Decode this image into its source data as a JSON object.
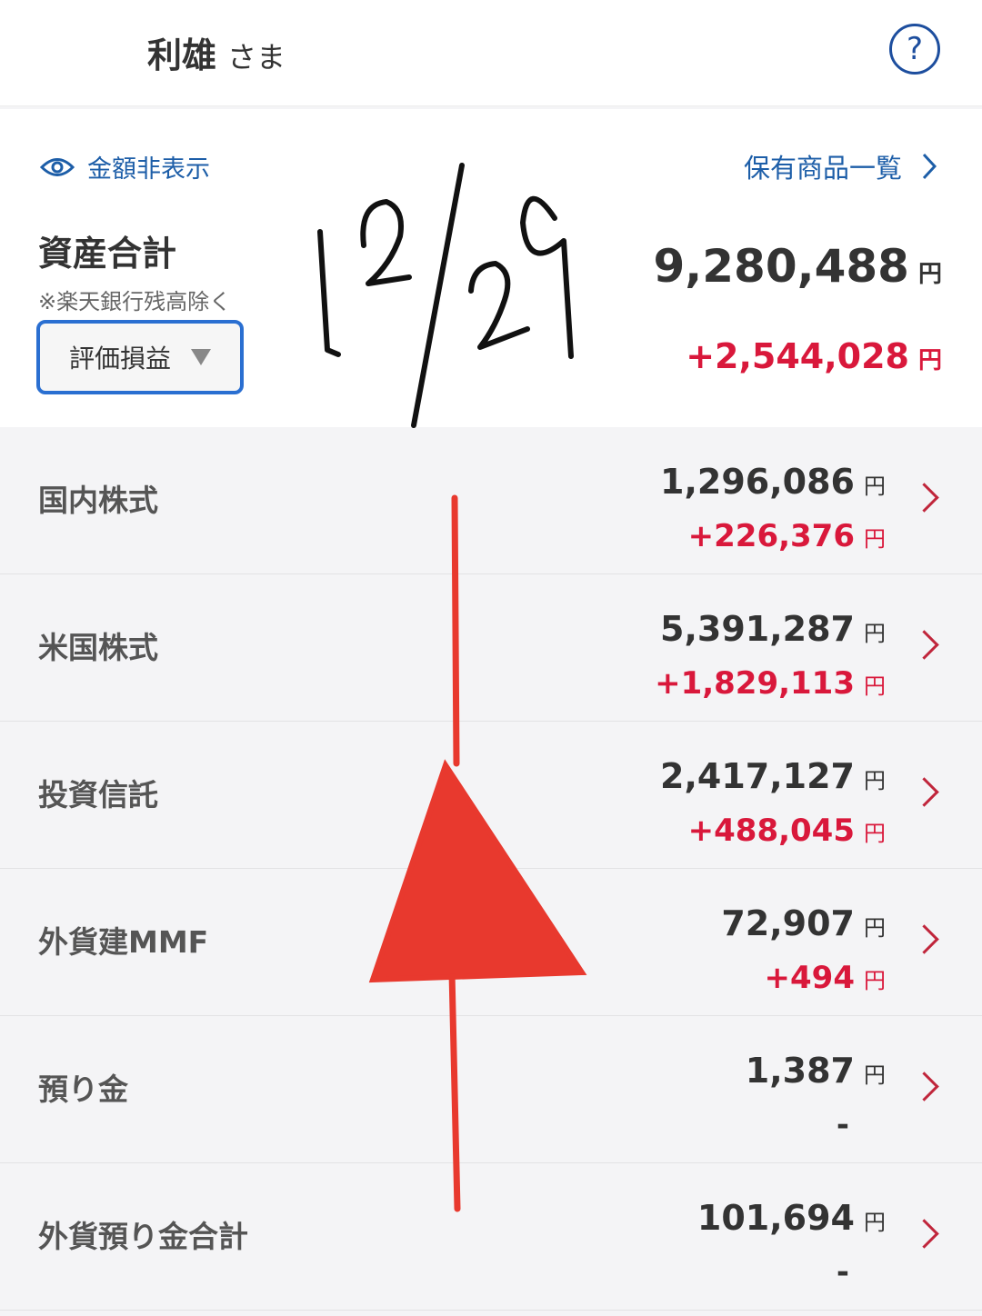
{
  "header": {
    "user_name": "利雄",
    "honorific": "さま",
    "help_icon": "question-circle-icon",
    "help_label": "?"
  },
  "summary": {
    "hide_amount_label": "金額非表示",
    "holdings_link_label": "保有商品一覧",
    "title": "資産合計",
    "note": "※楽天銀行残高除く",
    "select_value": "評価損益",
    "total": "9,280,488",
    "total_unit": "円",
    "gain": "+2,544,028",
    "gain_unit": "円"
  },
  "rows": [
    {
      "label": "国内株式",
      "amount": "1,296,086",
      "gain": "+226,376",
      "unit": "円"
    },
    {
      "label": "米国株式",
      "amount": "5,391,287",
      "gain": "+1,829,113",
      "unit": "円"
    },
    {
      "label": "投資信託",
      "amount": "2,417,127",
      "gain": "+488,045",
      "unit": "円"
    },
    {
      "label": "外貨建MMF",
      "amount": "72,907",
      "gain": "+494",
      "unit": "円"
    },
    {
      "label": "預り金",
      "amount": "1,387",
      "gain": "-",
      "unit": "円"
    },
    {
      "label": "外貨預り金合計",
      "amount": "101,694",
      "gain": "-",
      "unit": "円"
    }
  ],
  "annotation": {
    "handwritten_note": "12/29",
    "note_color": "#111111",
    "arrow_color": "#e8392e"
  },
  "colors": {
    "accent": "#1d5ea8",
    "gain": "#d9183b",
    "chevron": "#c0253b"
  }
}
